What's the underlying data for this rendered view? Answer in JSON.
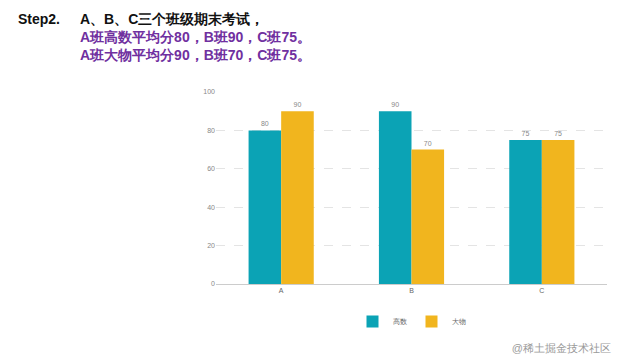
{
  "header": {
    "step": "Step2.",
    "lines": [
      "A、B、C三个班级期末考试，",
      "A班高数平均分80，B班90，C班75。",
      "A班大物平均分90，B班70，C班75。"
    ]
  },
  "footer": "@稀土掘金技术社区",
  "chart_data": {
    "type": "bar",
    "categories": [
      "A",
      "B",
      "C"
    ],
    "series": [
      {
        "name": "高数",
        "color": "#0ba3b5",
        "values": [
          80,
          90,
          75
        ]
      },
      {
        "name": "大物",
        "color": "#f1b51e",
        "values": [
          90,
          70,
          75
        ]
      }
    ],
    "ylim": [
      0,
      100
    ],
    "yticks": [
      0,
      20,
      40,
      60,
      80,
      100
    ],
    "grid": true,
    "legend": "bottom",
    "data_labels": true
  }
}
